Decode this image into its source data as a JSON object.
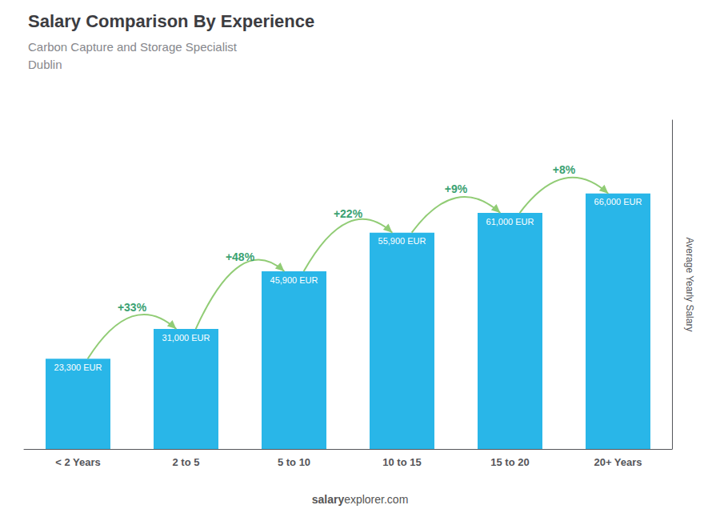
{
  "chart_data": {
    "type": "bar",
    "title": "Salary Comparison By Experience",
    "subtitle": [
      "Carbon Capture and Storage Specialist",
      "Dublin"
    ],
    "footer": [
      "salary",
      "explorer.com"
    ],
    "ylabel": "Average Yearly Salary",
    "categories": [
      "< 2 Years",
      "2 to 5",
      "5 to 10",
      "10 to 15",
      "15 to 20",
      "20+ Years"
    ],
    "values": [
      23300,
      31000,
      45900,
      55900,
      61000,
      66000
    ],
    "value_labels": [
      "23,300 EUR",
      "31,000 EUR",
      "45,900 EUR",
      "55,900 EUR",
      "61,000 EUR",
      "66,000 EUR"
    ],
    "change_labels": [
      null,
      "+33%",
      "+48%",
      "+22%",
      "+9%",
      "+8%"
    ],
    "color": "#29b6e8",
    "ylim": [
      0,
      85000
    ],
    "yticks": [],
    "tick_labels": "x",
    "data_labels": true,
    "grid": false
  }
}
